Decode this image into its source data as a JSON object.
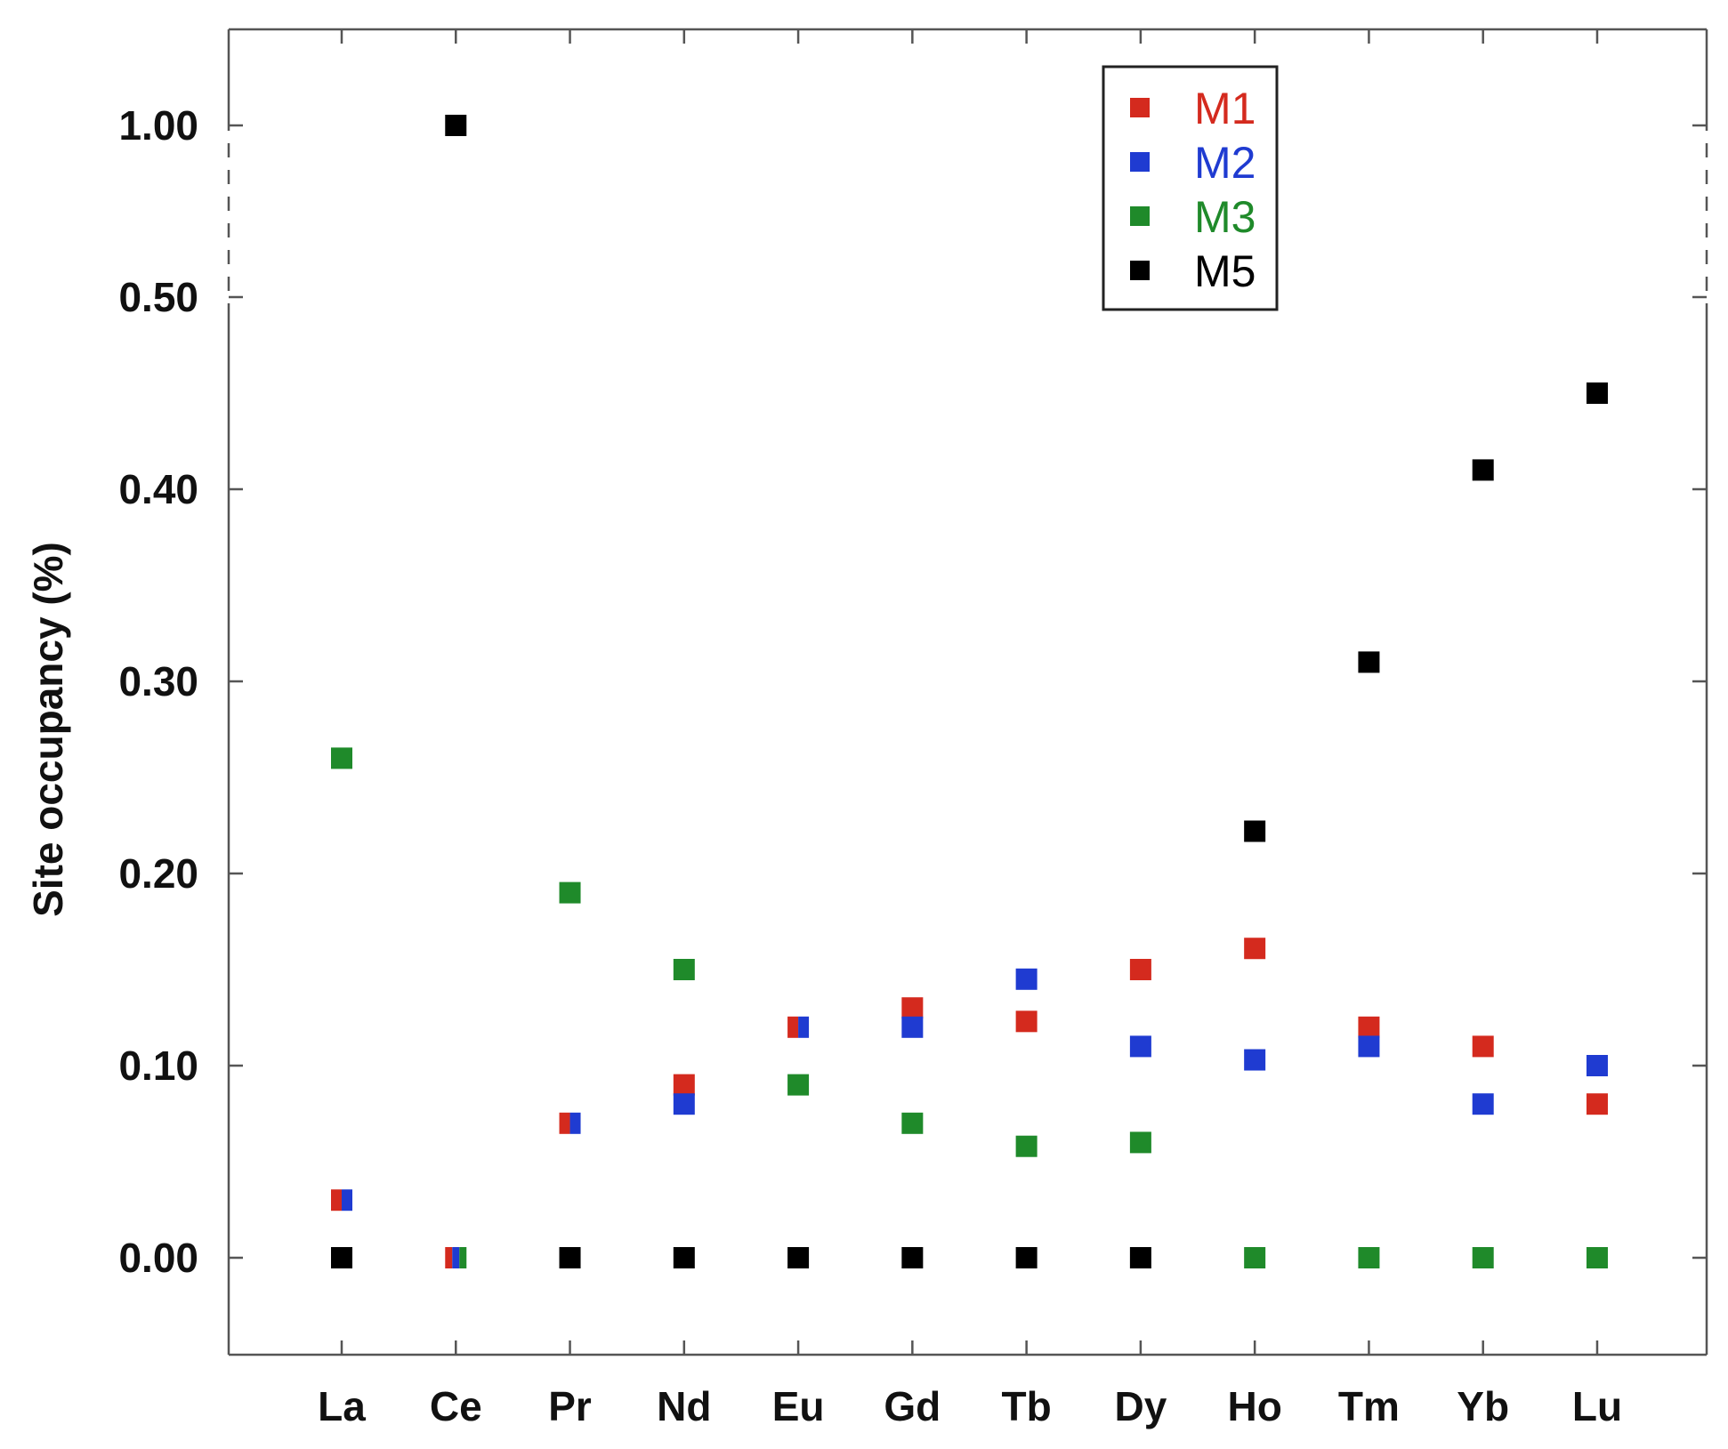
{
  "chart_data": {
    "type": "scatter",
    "title": "",
    "xlabel": "",
    "ylabel": "Site occupancy (%)",
    "categories": [
      "La",
      "Ce",
      "Pr",
      "Nd",
      "Eu",
      "Gd",
      "Tb",
      "Dy",
      "Ho",
      "Tm",
      "Yb",
      "Lu"
    ],
    "y_ticks": [
      "0.00",
      "0.10",
      "0.20",
      "0.30",
      "0.40",
      "0.50",
      "1.00"
    ],
    "y_axis_break": {
      "from": 0.5,
      "to": 1.0
    },
    "ylim": [
      -0.05,
      1.05
    ],
    "grid": false,
    "legend": {
      "position": "top-right"
    },
    "series": [
      {
        "name": "M1",
        "color": "#d42a1e",
        "values": [
          0.03,
          0.0,
          0.07,
          0.09,
          0.12,
          0.13,
          0.123,
          0.15,
          0.161,
          0.12,
          0.11,
          0.08
        ]
      },
      {
        "name": "M2",
        "color": "#1f3bd1",
        "values": [
          0.03,
          0.0,
          0.07,
          0.08,
          0.12,
          0.12,
          0.145,
          0.11,
          0.103,
          0.11,
          0.08,
          0.1
        ]
      },
      {
        "name": "M3",
        "color": "#1f8a2a",
        "values": [
          0.26,
          0.0,
          0.19,
          0.15,
          0.09,
          0.07,
          0.058,
          0.06,
          0.0,
          0.0,
          0.0,
          0.0
        ]
      },
      {
        "name": "M5",
        "color": "#000000",
        "values": [
          0.0,
          1.0,
          0.0,
          0.0,
          0.0,
          0.0,
          0.0,
          0.0,
          0.222,
          0.31,
          0.41,
          0.45
        ]
      }
    ]
  }
}
